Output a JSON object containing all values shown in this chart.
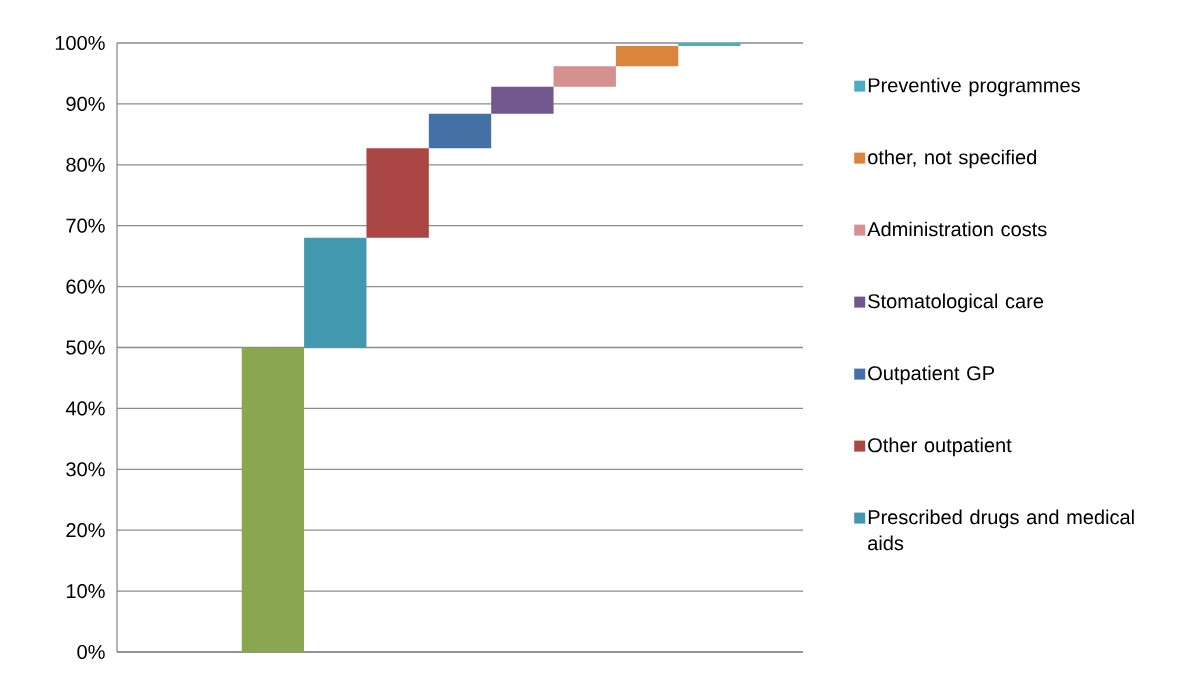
{
  "chart_data": {
    "type": "bar",
    "categories": [
      null,
      null,
      null,
      null,
      null,
      null,
      null,
      null,
      null,
      null,
      null
    ],
    "series": [
      {
        "color": "#8aa64f",
        "values": [
          null,
          null,
          50,
          null,
          null,
          null,
          null,
          null,
          null,
          null,
          null
        ],
        "base": [
          null,
          null,
          0,
          null,
          null,
          null,
          null,
          null,
          null,
          null,
          null
        ]
      },
      {
        "name": "Prescribed drugs and medical aids",
        "color": "#4198af",
        "values": [
          null,
          null,
          null,
          18,
          null,
          null,
          null,
          null,
          null,
          null,
          null
        ],
        "base": [
          null,
          null,
          null,
          50,
          null,
          null,
          null,
          null,
          null,
          null,
          null
        ]
      },
      {
        "name": "Other outpatient",
        "color": "#aa4644",
        "values": [
          null,
          null,
          null,
          null,
          14.7,
          null,
          null,
          null,
          null,
          null,
          null
        ],
        "base": [
          null,
          null,
          null,
          null,
          68,
          null,
          null,
          null,
          null,
          null,
          null
        ]
      },
      {
        "name": "Outpatient GP",
        "color": "#4471a5",
        "values": [
          null,
          null,
          null,
          null,
          null,
          5.7,
          null,
          null,
          null,
          null,
          null
        ],
        "base": [
          null,
          null,
          null,
          null,
          null,
          82.7,
          null,
          null,
          null,
          null,
          null
        ]
      },
      {
        "name": "Stomatological care",
        "color": "#71588f",
        "values": [
          null,
          null,
          null,
          null,
          null,
          null,
          4.4,
          null,
          null,
          null,
          null
        ],
        "base": [
          null,
          null,
          null,
          null,
          null,
          null,
          88.4,
          null,
          null,
          null,
          null
        ]
      },
      {
        "name": "Administration costs",
        "color": "#d49190",
        "values": [
          null,
          null,
          null,
          null,
          null,
          null,
          null,
          3.4,
          null,
          null,
          null
        ],
        "base": [
          null,
          null,
          null,
          null,
          null,
          null,
          null,
          92.8,
          null,
          null,
          null
        ]
      },
      {
        "name": "other, not specified",
        "color": "#db843d",
        "values": [
          null,
          null,
          null,
          null,
          null,
          null,
          null,
          null,
          3.3,
          null,
          null
        ],
        "base": [
          null,
          null,
          null,
          null,
          null,
          null,
          null,
          null,
          96.2,
          null,
          null
        ]
      },
      {
        "name": "Preventive programmes",
        "color": "#4bacc6",
        "values": [
          null,
          null,
          null,
          null,
          null,
          null,
          null,
          null,
          null,
          0.5,
          null
        ],
        "base": [
          null,
          null,
          null,
          null,
          null,
          null,
          null,
          null,
          null,
          99.5,
          null
        ]
      }
    ],
    "ylim": [
      0,
      100
    ],
    "yticks": [
      {
        "value": 0,
        "label": "0%"
      },
      {
        "value": 10,
        "label": "10%"
      },
      {
        "value": 20,
        "label": "20%"
      },
      {
        "value": 30,
        "label": "30%"
      },
      {
        "value": 40,
        "label": "40%"
      },
      {
        "value": 50,
        "label": "50%"
      },
      {
        "value": 60,
        "label": "60%"
      },
      {
        "value": 70,
        "label": "70%"
      },
      {
        "value": 80,
        "label": "80%"
      },
      {
        "value": 90,
        "label": "90%"
      },
      {
        "value": 100,
        "label": "100%"
      }
    ],
    "grid": "y",
    "legend": "right"
  }
}
